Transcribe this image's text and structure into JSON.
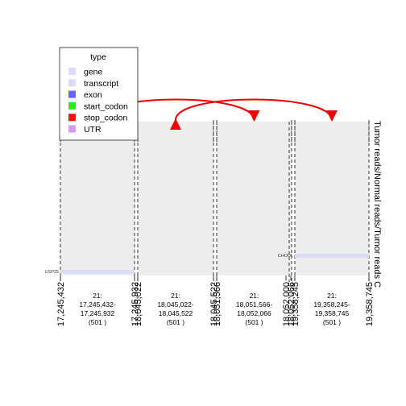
{
  "chart_data": {
    "type": "genomic-track",
    "legend": {
      "title": "type",
      "items": [
        {
          "label": "gene",
          "color": "#dcdcf8"
        },
        {
          "label": "transcript",
          "color": "#dcdcf8"
        },
        {
          "label": "exon",
          "color": "#6666ff"
        },
        {
          "label": "start_codon",
          "color": "#22ee22"
        },
        {
          "label": "stop_codon",
          "color": "#ff1111"
        },
        {
          "label": "UTR",
          "color": "#d49cf4"
        }
      ]
    },
    "panels": [
      {
        "chrom": "21",
        "start": 17245432,
        "end": 17245932,
        "label_lines": [
          "21:",
          "17,245,432-",
          "17,245,932",
          "(501 )"
        ]
      },
      {
        "chrom": "21",
        "start": 18045022,
        "end": 18045522,
        "label_lines": [
          "21:",
          "18,045,022-",
          "18,045,522",
          "(501 )"
        ]
      },
      {
        "chrom": "21",
        "start": 18051566,
        "end": 18052066,
        "label_lines": [
          "21:",
          "18,051,566-",
          "18,052,066",
          "(501 )"
        ]
      },
      {
        "chrom": "21",
        "start": 19358245,
        "end": 19358745,
        "label_lines": [
          "21:",
          "19,358,245-",
          "19,358,745",
          "(501 )"
        ]
      }
    ],
    "tick_labels": [
      "17,245,432",
      "17,245,932",
      "18,045,022",
      "18,045,522",
      "18,051,566",
      "18,052,000",
      "18,052,066",
      "19,358,245",
      "19,358,745"
    ],
    "genes": [
      {
        "name": "USP25",
        "panel": 0,
        "color": "#dcdcf8"
      },
      {
        "name": "CHODL",
        "panel": 3,
        "color": "#dcdcf8"
      }
    ],
    "links": [
      {
        "from_panel": 0,
        "to_panel": 2,
        "color": "#ee0000"
      },
      {
        "from_panel": 1,
        "to_panel": 3,
        "color": "#ee0000"
      }
    ],
    "track_label": "Tumor reads/Normal reads/Tumor reads C"
  }
}
